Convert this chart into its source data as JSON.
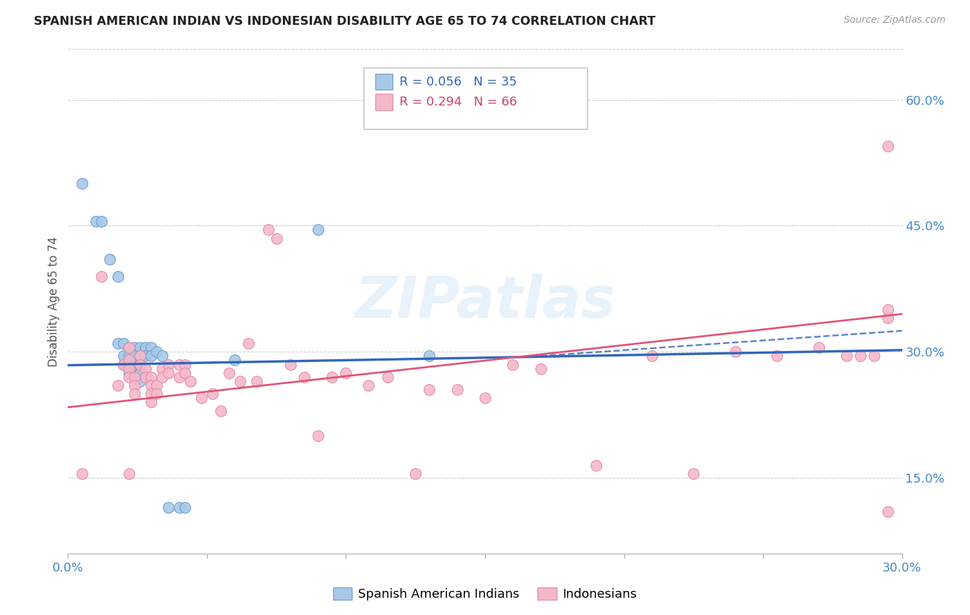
{
  "title": "SPANISH AMERICAN INDIAN VS INDONESIAN DISABILITY AGE 65 TO 74 CORRELATION CHART",
  "source": "Source: ZipAtlas.com",
  "ylabel": "Disability Age 65 to 74",
  "xlim": [
    0.0,
    0.3
  ],
  "ylim": [
    0.06,
    0.66
  ],
  "xticks": [
    0.0,
    0.05,
    0.1,
    0.15,
    0.2,
    0.25,
    0.3
  ],
  "xticklabels": [
    "0.0%",
    "",
    "",
    "",
    "",
    "",
    "30.0%"
  ],
  "yticks_right": [
    0.15,
    0.3,
    0.45,
    0.6
  ],
  "ytick_labels_right": [
    "15.0%",
    "30.0%",
    "45.0%",
    "60.0%"
  ],
  "color_blue": "#a8c8e8",
  "color_blue_edge": "#6699cc",
  "color_blue_line": "#3366bb",
  "color_pink": "#f5b8c8",
  "color_pink_edge": "#dd88aa",
  "color_pink_line": "#e05577",
  "watermark": "ZIPatlas",
  "blue_trend_x0": 0.0,
  "blue_trend_y0": 0.284,
  "blue_trend_x1": 0.3,
  "blue_trend_y1": 0.302,
  "pink_trend_x0": 0.0,
  "pink_trend_y0": 0.234,
  "pink_trend_x1": 0.3,
  "pink_trend_y1": 0.345,
  "blue_points_x": [
    0.005,
    0.01,
    0.012,
    0.015,
    0.018,
    0.018,
    0.02,
    0.02,
    0.02,
    0.022,
    0.022,
    0.022,
    0.022,
    0.022,
    0.024,
    0.024,
    0.024,
    0.024,
    0.026,
    0.026,
    0.026,
    0.026,
    0.026,
    0.028,
    0.028,
    0.03,
    0.03,
    0.032,
    0.034,
    0.036,
    0.04,
    0.042,
    0.06,
    0.09,
    0.13
  ],
  "blue_points_y": [
    0.5,
    0.455,
    0.455,
    0.41,
    0.39,
    0.31,
    0.31,
    0.295,
    0.285,
    0.305,
    0.295,
    0.285,
    0.28,
    0.275,
    0.305,
    0.295,
    0.285,
    0.275,
    0.305,
    0.295,
    0.285,
    0.275,
    0.265,
    0.305,
    0.295,
    0.305,
    0.295,
    0.3,
    0.295,
    0.115,
    0.115,
    0.115,
    0.29,
    0.445,
    0.295
  ],
  "pink_points_x": [
    0.005,
    0.012,
    0.018,
    0.02,
    0.022,
    0.022,
    0.022,
    0.022,
    0.022,
    0.024,
    0.024,
    0.024,
    0.026,
    0.026,
    0.028,
    0.028,
    0.03,
    0.03,
    0.03,
    0.03,
    0.032,
    0.032,
    0.034,
    0.034,
    0.036,
    0.036,
    0.04,
    0.04,
    0.042,
    0.042,
    0.044,
    0.048,
    0.052,
    0.055,
    0.058,
    0.062,
    0.065,
    0.068,
    0.072,
    0.075,
    0.08,
    0.085,
    0.09,
    0.095,
    0.1,
    0.108,
    0.115,
    0.125,
    0.13,
    0.14,
    0.15,
    0.16,
    0.17,
    0.19,
    0.21,
    0.225,
    0.24,
    0.255,
    0.27,
    0.28,
    0.285,
    0.29,
    0.295,
    0.295,
    0.295,
    0.295
  ],
  "pink_points_y": [
    0.155,
    0.39,
    0.26,
    0.285,
    0.305,
    0.29,
    0.28,
    0.27,
    0.155,
    0.27,
    0.26,
    0.25,
    0.295,
    0.285,
    0.28,
    0.27,
    0.27,
    0.26,
    0.25,
    0.24,
    0.26,
    0.25,
    0.28,
    0.27,
    0.285,
    0.275,
    0.285,
    0.27,
    0.285,
    0.275,
    0.265,
    0.245,
    0.25,
    0.23,
    0.275,
    0.265,
    0.31,
    0.265,
    0.445,
    0.435,
    0.285,
    0.27,
    0.2,
    0.27,
    0.275,
    0.26,
    0.27,
    0.155,
    0.255,
    0.255,
    0.245,
    0.285,
    0.28,
    0.165,
    0.295,
    0.155,
    0.3,
    0.295,
    0.305,
    0.295,
    0.295,
    0.295,
    0.34,
    0.11,
    0.35,
    0.545
  ]
}
